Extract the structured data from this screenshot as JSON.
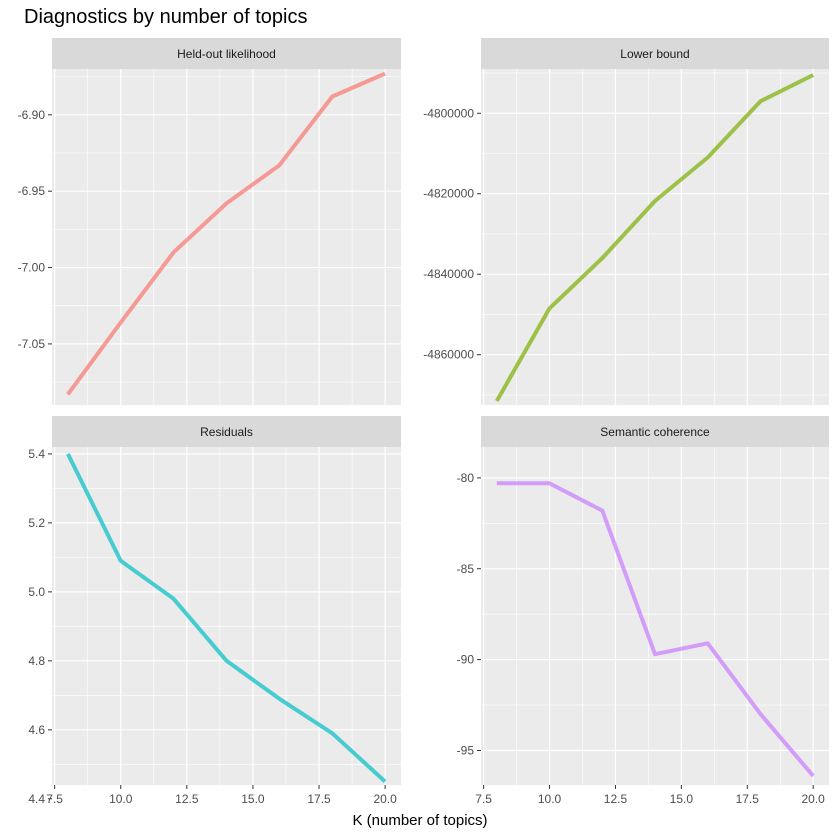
{
  "chart_data": {
    "type": "line",
    "title": "Diagnostics by number of topics",
    "xlabel": "K (number of topics)",
    "x": [
      8,
      10,
      12,
      14,
      16,
      18,
      20
    ],
    "xlim": [
      8,
      20
    ],
    "x_ticks": [
      7.5,
      10.0,
      12.5,
      15.0,
      17.5,
      20.0
    ],
    "x_tick_labels": [
      "7.5",
      "10.0",
      "12.5",
      "15.0",
      "17.5",
      "20.0"
    ],
    "grid": true,
    "facets": [
      {
        "name": "Held-out likelihood",
        "color": "#F8766D",
        "values": [
          -7.083,
          -7.036,
          -6.99,
          -6.958,
          -6.933,
          -6.888,
          -6.873
        ],
        "ylim": [
          -7.09,
          -6.87
        ],
        "y_ticks": [
          -7.05,
          -7.0,
          -6.95,
          -6.9
        ],
        "y_tick_labels": [
          "-7.05",
          "-7.00",
          "-6.95",
          "-6.90"
        ]
      },
      {
        "name": "Lower bound",
        "color": "#7CAE00",
        "values": [
          -4871500,
          -4848500,
          -4836000,
          -4821800,
          -4811000,
          -4797000,
          -4790500
        ],
        "ylim": [
          -4872500,
          -4789000
        ],
        "y_ticks": [
          -4860000,
          -4840000,
          -4820000,
          -4800000
        ],
        "y_tick_labels": [
          "-4860000",
          "-4840000",
          "-4820000",
          "-4800000"
        ]
      },
      {
        "name": "Residuals",
        "color": "#00BFC4",
        "values": [
          5.4,
          5.09,
          4.98,
          4.8,
          4.69,
          4.59,
          4.45
        ],
        "ylim": [
          4.44,
          5.42
        ],
        "y_ticks": [
          4.4,
          4.6,
          4.8,
          5.0,
          5.2,
          5.4
        ],
        "y_tick_labels": [
          "4.4",
          "4.6",
          "4.8",
          "5.0",
          "5.2",
          "5.4"
        ]
      },
      {
        "name": "Semantic coherence",
        "color": "#C77CFF",
        "values": [
          -80.3,
          -80.3,
          -81.8,
          -89.7,
          -89.1,
          -93.0,
          -96.4
        ],
        "ylim": [
          -96.9,
          -78.3
        ],
        "y_ticks": [
          -95,
          -90,
          -85,
          -80
        ],
        "y_tick_labels": [
          "-95",
          "-90",
          "-85",
          "-80"
        ]
      }
    ]
  }
}
